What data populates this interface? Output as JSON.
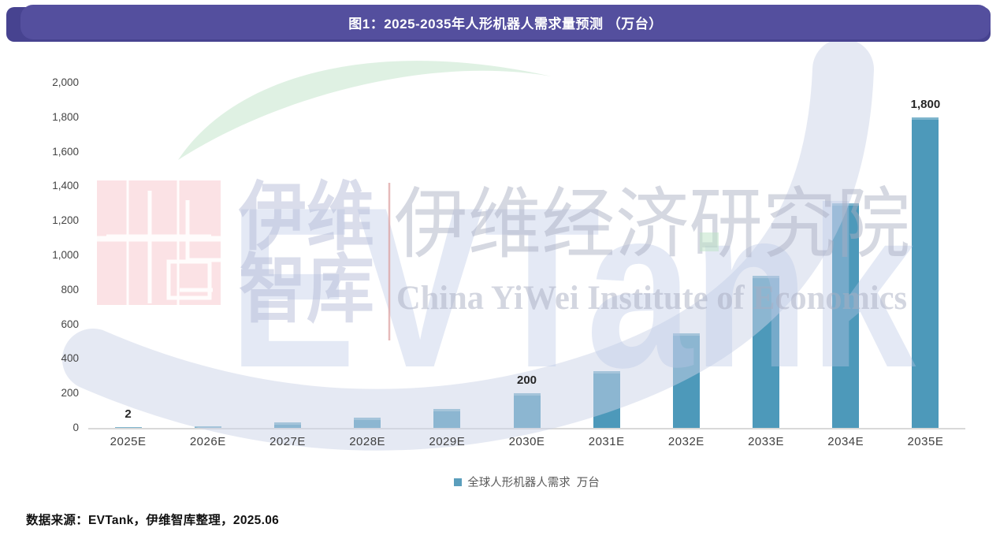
{
  "header": {
    "title": "图1：2025-2035年人形机器人需求量预测 （万台）",
    "banner_color": "#544f9e",
    "banner_back_color": "#474390"
  },
  "chart_data": {
    "type": "bar",
    "title": "图1：2025-2035年人形机器人需求量预测 （万台）",
    "categories": [
      "2025E",
      "2026E",
      "2027E",
      "2028E",
      "2029E",
      "2030E",
      "2031E",
      "2032E",
      "2033E",
      "2034E",
      "2035E"
    ],
    "series": [
      {
        "name": "全球人形机器人需求 万台",
        "values": [
          2,
          10,
          30,
          60,
          110,
          200,
          330,
          550,
          880,
          1300,
          1800
        ]
      }
    ],
    "data_labels": [
      "2",
      "",
      "",
      "",
      "",
      "200",
      "",
      "",
      "",
      "",
      "1,800"
    ],
    "ylim": [
      0,
      2000
    ],
    "y_tick_step": 200,
    "y_tick_labels": [
      "0",
      "200",
      "400",
      "600",
      "800",
      "1,000",
      "1,200",
      "1,400",
      "1,600",
      "1,800",
      "2,000"
    ],
    "grid": false,
    "legend_position": "bottom",
    "bar_color": "#4d99ba",
    "unit": "万台"
  },
  "legend": {
    "label": "全球人形机器人需求  万台",
    "marker_color": "#5b9ebc"
  },
  "watermark": {
    "cn_line1": "伊维",
    "cn_line2": "智库",
    "logo_text": "EVTank",
    "institute_cn": "伊维经济研究院",
    "institute_en": "China YiWei Institute of Economics"
  },
  "footer": {
    "source": "数据来源：EVTank，伊维智库整理，2025.06"
  }
}
